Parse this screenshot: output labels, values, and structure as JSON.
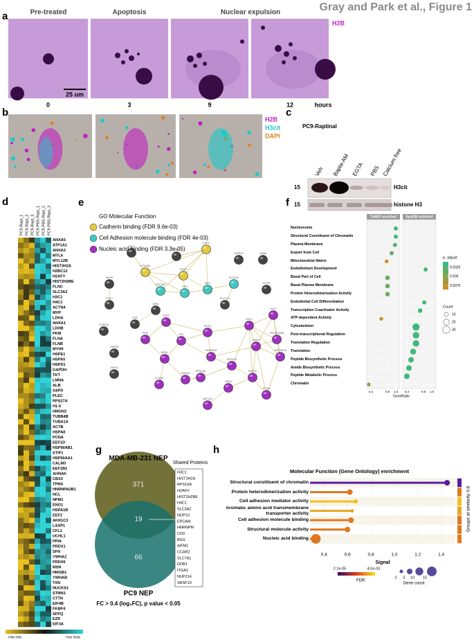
{
  "header": {
    "title": "Gray and Park et al., Figure 1"
  },
  "panel_labels": [
    "a",
    "b",
    "c",
    "d",
    "e",
    "f",
    "g",
    "h"
  ],
  "panel_a": {
    "columns": [
      "Pre-treated",
      "Apoptosis",
      "Nuclear expulsion"
    ],
    "channel": "H2B",
    "scale_bar": "25 um",
    "times": [
      0,
      3,
      9,
      12
    ],
    "time_unit": "hours"
  },
  "panel_b": {
    "channels": [
      {
        "label": "H2B",
        "color": "#c020c0"
      },
      {
        "label": "H3cit",
        "color": "#20c8c8"
      },
      {
        "label": "DAPI",
        "color": "#e08020"
      }
    ]
  },
  "panel_c": {
    "title": "PC9-Raptinal",
    "lanes": [
      "Veh",
      "Bapta-AM",
      "EGTA",
      "PBS",
      "Calcium free"
    ],
    "rows": [
      {
        "kda": 15,
        "label": "H3cit"
      },
      {
        "kda": 15,
        "label": "histone H3"
      }
    ]
  },
  "panel_d": {
    "columns": [
      "PC9-Rapt_1",
      "PC9-Rapt_2",
      "PC9-Rapt_3",
      "PC9-PBS-Rapt_1",
      "PC9-PBS-Rapt_2",
      "PC9-PBS-Rapt_3"
    ],
    "genes": [
      "ANXA5",
      "ATP1A1",
      "ANXA2",
      "MYL6",
      "MYL12B",
      "HIST3H2A",
      "H2BC12",
      "H2AFY",
      "HIST2H2BE",
      "FLNC",
      "SLC3A2",
      "H3C1",
      "H4C1",
      "ACTN4",
      "MVP",
      "LDHA",
      "ANXA1",
      "LDHB",
      "PKM",
      "FLNA",
      "FLNB",
      "MYH9",
      "HSPE1",
      "HSPA5",
      "HSPD1",
      "GAPDH",
      "TKT",
      "LMNA",
      "ALB",
      "G6PD",
      "PLEC",
      "RPS27A",
      "H1-5",
      "HMGN2",
      "TUBB4B",
      "TUBA1A",
      "ACTB",
      "HSPA8",
      "PCNA",
      "EEF1D",
      "HSP90AB1",
      "STIP1",
      "HSP90AA1",
      "CALM3",
      "EEF1B2",
      "AHNAK",
      "CBX3",
      "TPM4",
      "HNRNPA2B1",
      "NCL",
      "NPM1",
      "ENO1",
      "HSPA1B",
      "EEF2",
      "AKR1C3",
      "LASP1",
      "CFL1",
      "UCHL1",
      "PPIA",
      "PRDX1",
      "SFN",
      "YWHAZ",
      "PRDX6",
      "MSN",
      "HMGB1",
      "YWHAB",
      "TXN",
      "NUCKS1",
      "STMN1",
      "CTTN",
      "EIF4B",
      "FKBP4",
      "SFPQ",
      "EZR",
      "EIF3A"
    ],
    "legend": [
      "row min",
      "row max"
    ]
  },
  "panel_e": {
    "title": "GO Molecular Function",
    "terms": [
      {
        "label": "Cadherin binding (FDR 9.6e-03)",
        "color": "#e0c840"
      },
      {
        "label": "Cell Adhesion molecule binding (FDR 4e-03)",
        "color": "#40c8c0"
      },
      {
        "label": "Nucleic acid binding (FDR 3.3e-05)",
        "color": "#a030c0"
      }
    ],
    "nodes": [
      {
        "label": "CDH1",
        "color": "#e0c840"
      },
      {
        "label": "CTNNB1",
        "color": "#e0c840"
      },
      {
        "label": "EPCAM",
        "color": "#40c8c0"
      },
      {
        "label": "CD9",
        "color": "#40c8c0"
      },
      {
        "label": "ITGA2",
        "color": "#e0c840"
      },
      {
        "label": "BSG",
        "color": "#40c8c0"
      },
      {
        "label": "SLC3A2",
        "color": "#40c8c0"
      },
      {
        "label": "SLC7A1",
        "color": "#444444"
      },
      {
        "label": "ACTB",
        "color": "#444444"
      },
      {
        "label": "CAV1",
        "color": "#444444"
      },
      {
        "label": "FN1",
        "color": "#444444"
      },
      {
        "label": "MYH9",
        "color": "#444444"
      },
      {
        "label": "PLEC",
        "color": "#444444"
      },
      {
        "label": "MSN",
        "color": "#444444"
      },
      {
        "label": "EZR",
        "color": "#444444"
      },
      {
        "label": "LMNA",
        "color": "#444444"
      },
      {
        "label": "GAPDH",
        "color": "#444444"
      },
      {
        "label": "TUBA1A",
        "color": "#444444"
      },
      {
        "label": "HSPA5",
        "color": "#444444"
      },
      {
        "label": "PKM",
        "color": "#a030c0"
      },
      {
        "label": "EEF2",
        "color": "#a030c0"
      },
      {
        "label": "NCL",
        "color": "#a030c0"
      },
      {
        "label": "NPM1",
        "color": "#a030c0"
      },
      {
        "label": "HMGB1",
        "color": "#a030c0"
      },
      {
        "label": "SFPQ",
        "color": "#a030c0"
      },
      {
        "label": "HNRNPM",
        "color": "#a030c0"
      },
      {
        "label": "SRSF10",
        "color": "#a030c0"
      },
      {
        "label": "RPS15A",
        "color": "#a030c0"
      },
      {
        "label": "H3C1",
        "color": "#a030c0"
      },
      {
        "label": "H4C1",
        "color": "#a030c0"
      },
      {
        "label": "H2AFV",
        "color": "#a030c0"
      },
      {
        "label": "HIST2H2BE",
        "color": "#a030c0"
      },
      {
        "label": "HIST3H2A",
        "color": "#a030c0"
      },
      {
        "label": "NOP10",
        "color": "#a030c0"
      },
      {
        "label": "DDB1",
        "color": "#a030c0"
      },
      {
        "label": "NUP214",
        "color": "#a030c0"
      },
      {
        "label": "PCNA",
        "color": "#a030c0"
      },
      {
        "label": "AIFM1",
        "color": "#444444"
      },
      {
        "label": "CCAR2",
        "color": "#a030c0"
      }
    ]
  },
  "panel_f": {
    "categories": [
      "Nucleosome",
      "Structural Constituent of Chromatin",
      "Plasma Membrane",
      "Export from Cell",
      "Mitochondrial Matrix",
      "Endothelium Development",
      "Basal Part of Cell",
      "Basal Plasma Membrane",
      "Protein Heterodimerization Activity",
      "Endothelial Cell Differentiation",
      "Transcription Coactivator Activity",
      "ATP-dependent Activity",
      "Cytoskeleton",
      "Post-transcriptional Regulation",
      "Translation Regulation",
      "Translation",
      "Peptide Biosynthetic Process",
      "Amide Biosynthetic Process",
      "Peptide Metabolic Process",
      "Chromatin"
    ],
    "series": [
      {
        "name": "TuNEP enriched",
        "values": [
          1.0,
          1.0,
          0.98,
          0.9,
          0.78,
          null,
          0.8,
          0.8,
          0.8,
          null,
          null,
          0.65,
          null,
          null,
          null,
          null,
          null,
          null,
          null,
          0.35
        ],
        "counts": [
          10,
          10,
          10,
          10,
          8,
          null,
          12,
          12,
          12,
          null,
          null,
          8,
          null,
          null,
          null,
          null,
          null,
          null,
          null,
          8
        ],
        "padj": [
          0.002,
          0.002,
          0.003,
          0.004,
          0.008,
          null,
          0.004,
          0.004,
          0.004,
          null,
          null,
          0.008,
          null,
          null,
          null,
          null,
          null,
          null,
          null,
          0.006
        ]
      },
      {
        "name": "ApoDB enriched",
        "values": [
          null,
          null,
          null,
          null,
          null,
          0.85,
          null,
          null,
          null,
          0.82,
          0.72,
          null,
          0.62,
          0.62,
          0.62,
          0.55,
          0.5,
          0.45,
          0.4,
          null
        ],
        "counts": [
          null,
          null,
          null,
          null,
          null,
          10,
          null,
          null,
          null,
          10,
          12,
          null,
          30,
          25,
          25,
          20,
          18,
          18,
          18,
          null
        ],
        "padj": [
          null,
          null,
          null,
          null,
          null,
          0.002,
          null,
          null,
          null,
          0.002,
          0.002,
          null,
          0.002,
          0.002,
          0.002,
          0.002,
          0.002,
          0.002,
          0.002,
          null
        ]
      }
    ],
    "xlim": [
      0.3,
      1.1
    ],
    "xticks": [
      0.4,
      0.8,
      {
        "value": 1,
        "label": "1.0"
      }
    ],
    "xlabel": "GeneRatio",
    "color_title": "p. adjust",
    "padj_lim": [
      0.001,
      0.0085
    ],
    "padj_colors": [
      "#2bc08a",
      "#d58a20"
    ],
    "color_ticks": [
      0.0025,
      0.005,
      0.0075
    ],
    "count_title": "Count",
    "count_ticks": [
      10,
      20,
      30
    ]
  },
  "panel_g": {
    "sets": [
      "MDA-MB-231 NEP",
      "PC9 NEP"
    ],
    "counts": [
      371,
      19,
      66
    ],
    "caption": "FC > 0.4 (log₂FC), p value < 0.05",
    "list_title": "Shared Proteins",
    "shared": [
      "H3C1",
      "HIST3H2A",
      "RPS15A",
      "H2AFV",
      "HIST2H2BE",
      "H4C1",
      "SLC3A2",
      "NOP10",
      "EPCAM",
      "HNRNPM",
      "CD9",
      "BSG",
      "AIFM1",
      "CCAR2",
      "SLC7A1",
      "DDB1",
      "ITGA2",
      "NUP214",
      "SRSF10"
    ]
  },
  "panel_h": {
    "title": "Molecular Function (Gene Ontology) enrichment",
    "categories": [
      "Structural constituent of chromatin",
      "Protein heterodimerization activity",
      "Cell adhesion mediator activity",
      "Aromatic amino acid transmembrane transporter activity",
      "Cell adhesion molecule binding",
      "Structural molecule activity",
      "Nucleic acid binding"
    ],
    "values": [
      1.45,
      0.62,
      0.67,
      0.64,
      0.63,
      0.6,
      0.33
    ],
    "colors": [
      "#5a1aa0",
      "#e07820",
      "#f0c020",
      "#e8a820",
      "#e07820",
      "#e07820",
      "#e07820"
    ],
    "gene_counts": [
      5,
      5,
      3,
      2,
      5,
      5,
      15
    ],
    "xlim": [
      0.28,
      1.52
    ],
    "xticks": [
      0.4,
      0.6,
      0.8,
      {
        "value": 1,
        "label": "1.0"
      },
      1.2,
      1.4
    ],
    "xlabel": "Signal",
    "group_label": "Groups at similarity 0.8",
    "fdr_title": "FDR",
    "fdr_labels": [
      "2.1e-05",
      "4.0e-03"
    ],
    "count_title": "Gene count",
    "count_ticks": [
      2,
      5,
      10,
      15
    ]
  }
}
